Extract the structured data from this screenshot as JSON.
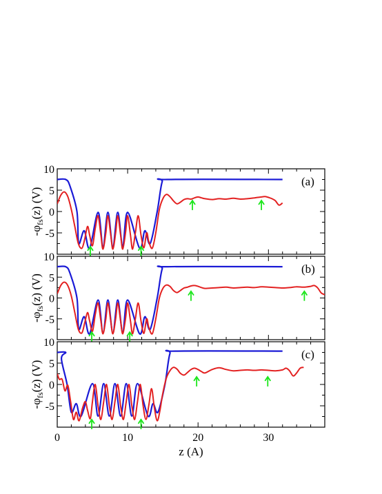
{
  "chart_data": [
    {
      "type": "line",
      "panel_label": "(a)",
      "ylabel_main": "-φ",
      "ylabel_sub": "fs",
      "ylabel_rest": "(z) (V)",
      "xlim": [
        0,
        38
      ],
      "ylim": [
        -10,
        10
      ],
      "yticks": [
        "10",
        "5",
        "0",
        "-5"
      ],
      "blue_series": {
        "color": "#1a1ad6",
        "start": 7.5,
        "end_x": 32,
        "plateau": 7.5,
        "wells": [
          [
            3.05,
            -7.5
          ],
          [
            4.6,
            -8.6
          ],
          [
            11.7,
            -8.6
          ],
          [
            13.2,
            -7.5
          ]
        ],
        "flanks": [
          [
            1.8,
            3.8
          ],
          [
            13.5,
            14.9
          ]
        ],
        "peaks": [
          5.8,
          7.2,
          8.6,
          10.0
        ],
        "peak_value": -0.2,
        "trough_value": -8.2
      },
      "red_series": {
        "color": "#e32020",
        "end_x": 32,
        "points": [
          [
            0,
            1.8
          ],
          [
            0.5,
            3.8
          ],
          [
            1.0,
            4.6
          ],
          [
            1.5,
            3.5
          ],
          [
            2.0,
            0.5
          ],
          [
            2.5,
            -3.5
          ],
          [
            3.0,
            -7.5
          ],
          [
            3.5,
            -8.6
          ],
          [
            3.9,
            -6.5
          ],
          [
            4.3,
            -3.5
          ],
          [
            4.6,
            -5.5
          ],
          [
            5.0,
            -8.0
          ],
          [
            5.4,
            -4.0
          ],
          [
            5.8,
            -1.0
          ],
          [
            6.2,
            -5.5
          ],
          [
            6.5,
            -8.8
          ],
          [
            6.9,
            -5.0
          ],
          [
            7.2,
            -1.0
          ],
          [
            7.6,
            -5.5
          ],
          [
            7.9,
            -8.8
          ],
          [
            8.3,
            -5.0
          ],
          [
            8.6,
            -1.0
          ],
          [
            9.0,
            -5.5
          ],
          [
            9.3,
            -8.8
          ],
          [
            9.7,
            -5.0
          ],
          [
            10.0,
            -1.0
          ],
          [
            10.4,
            -5.5
          ],
          [
            10.7,
            -8.8
          ],
          [
            11.1,
            -5.0
          ],
          [
            11.5,
            -1.0
          ],
          [
            11.9,
            -5.5
          ],
          [
            12.3,
            -8.5
          ],
          [
            12.7,
            -5.0
          ],
          [
            13.0,
            -7.0
          ],
          [
            13.5,
            -8.6
          ],
          [
            14.0,
            -5.0
          ],
          [
            14.5,
            0.5
          ],
          [
            15.0,
            3.0
          ],
          [
            15.5,
            4.0
          ],
          [
            16.0,
            3.5
          ],
          [
            16.5,
            2.5
          ],
          [
            17.0,
            1.8
          ],
          [
            17.5,
            2.2
          ],
          [
            18.0,
            2.8
          ],
          [
            18.5,
            3.0
          ],
          [
            19.0,
            2.9
          ],
          [
            19.5,
            3.2
          ],
          [
            20.0,
            3.4
          ],
          [
            20.5,
            3.2
          ],
          [
            21.0,
            3.0
          ],
          [
            22.0,
            2.8
          ],
          [
            23.0,
            3.0
          ],
          [
            24.0,
            2.9
          ],
          [
            25.0,
            3.1
          ],
          [
            26.0,
            2.9
          ],
          [
            27.0,
            3.0
          ],
          [
            28.0,
            3.2
          ],
          [
            29.0,
            3.4
          ],
          [
            29.5,
            3.5
          ],
          [
            30.0,
            3.3
          ],
          [
            30.5,
            3.0
          ],
          [
            31.0,
            2.5
          ],
          [
            31.5,
            1.5
          ],
          [
            32.0,
            2.0
          ]
        ]
      },
      "arrows": [
        {
          "x": 4.7,
          "y": -9.5,
          "dir": "up"
        },
        {
          "x": 11.9,
          "y": -9.5,
          "dir": "up"
        },
        {
          "x": 19.2,
          "y": 1.3,
          "dir": "up"
        },
        {
          "x": 29.0,
          "y": 1.3,
          "dir": "up"
        }
      ]
    },
    {
      "type": "line",
      "panel_label": "(b)",
      "ylabel_main": "-φ",
      "ylabel_sub": "fs",
      "ylabel_rest": "(z) (V)",
      "xlim": [
        0,
        38
      ],
      "ylim": [
        -10,
        10
      ],
      "yticks": [
        "10",
        "5",
        "0",
        "-5"
      ],
      "blue_series": {
        "color": "#1a1ad6",
        "start": 7.5,
        "end_x": 32,
        "plateau": 7.5,
        "wells": [
          [
            3.05,
            -7.5
          ],
          [
            4.6,
            -8.6
          ],
          [
            11.7,
            -8.6
          ],
          [
            13.2,
            -7.5
          ]
        ],
        "flanks": [
          [
            1.8,
            3.8
          ],
          [
            13.5,
            14.9
          ]
        ],
        "peaks": [
          5.8,
          7.2,
          8.6,
          10.0
        ],
        "peak_value": -0.5,
        "trough_value": -8.4
      },
      "red_series": {
        "color": "#e32020",
        "end_x": 38,
        "points": [
          [
            0,
            1.0
          ],
          [
            0.5,
            3.0
          ],
          [
            1.0,
            3.8
          ],
          [
            1.5,
            3.0
          ],
          [
            2.0,
            0.5
          ],
          [
            2.5,
            -3.5
          ],
          [
            3.0,
            -7.5
          ],
          [
            3.5,
            -8.4
          ],
          [
            3.9,
            -6.0
          ],
          [
            4.3,
            -3.5
          ],
          [
            4.6,
            -5.5
          ],
          [
            5.0,
            -8.0
          ],
          [
            5.4,
            -4.0
          ],
          [
            5.8,
            -1.2
          ],
          [
            6.2,
            -5.5
          ],
          [
            6.5,
            -8.6
          ],
          [
            6.9,
            -5.0
          ],
          [
            7.2,
            -1.2
          ],
          [
            7.6,
            -5.5
          ],
          [
            7.9,
            -8.6
          ],
          [
            8.3,
            -5.0
          ],
          [
            8.6,
            -1.2
          ],
          [
            9.0,
            -5.5
          ],
          [
            9.3,
            -8.6
          ],
          [
            9.7,
            -5.0
          ],
          [
            10.0,
            -1.2
          ],
          [
            10.4,
            -5.5
          ],
          [
            10.7,
            -8.6
          ],
          [
            11.1,
            -5.0
          ],
          [
            11.5,
            -1.2
          ],
          [
            11.9,
            -5.5
          ],
          [
            12.3,
            -8.5
          ],
          [
            12.7,
            -5.0
          ],
          [
            13.0,
            -7.0
          ],
          [
            13.5,
            -8.6
          ],
          [
            14.0,
            -5.0
          ],
          [
            14.5,
            0.0
          ],
          [
            15.0,
            2.3
          ],
          [
            15.5,
            3.1
          ],
          [
            16.0,
            2.8
          ],
          [
            16.5,
            1.8
          ],
          [
            17.0,
            1.3
          ],
          [
            17.5,
            1.8
          ],
          [
            18.0,
            2.4
          ],
          [
            18.5,
            2.6
          ],
          [
            19.0,
            2.9
          ],
          [
            19.5,
            3.0
          ],
          [
            20.0,
            2.8
          ],
          [
            20.5,
            2.5
          ],
          [
            21.0,
            2.3
          ],
          [
            22.0,
            2.4
          ],
          [
            23.0,
            2.5
          ],
          [
            24.0,
            2.6
          ],
          [
            25.0,
            2.4
          ],
          [
            26.0,
            2.5
          ],
          [
            27.0,
            2.6
          ],
          [
            28.0,
            2.5
          ],
          [
            29.0,
            2.7
          ],
          [
            30.0,
            2.6
          ],
          [
            31.0,
            2.5
          ],
          [
            32.0,
            2.4
          ],
          [
            33.0,
            2.5
          ],
          [
            34.0,
            2.7
          ],
          [
            35.0,
            2.6
          ],
          [
            36.0,
            2.8
          ],
          [
            36.5,
            3.0
          ],
          [
            37.0,
            2.4
          ],
          [
            37.5,
            1.2
          ],
          [
            38.0,
            0.8
          ]
        ]
      },
      "arrows": [
        {
          "x": 4.9,
          "y": -9.5,
          "dir": "up"
        },
        {
          "x": 10.3,
          "y": -9.5,
          "dir": "up"
        },
        {
          "x": 19.0,
          "y": 0.3,
          "dir": "up"
        },
        {
          "x": 35.1,
          "y": 0.3,
          "dir": "up"
        }
      ]
    },
    {
      "type": "line",
      "panel_label": "(c)",
      "ylabel_main": "-φ",
      "ylabel_sub": "fs",
      "ylabel_rest": "(z) (V)",
      "xlim": [
        0,
        38
      ],
      "ylim": [
        -10,
        10
      ],
      "yticks": [
        "10",
        "5",
        "0",
        "-5"
      ],
      "blue_series": {
        "color": "#1a1ad6",
        "start": 7.5,
        "end_x": 32,
        "plateau": 7.8,
        "wells": [
          [
            2.0,
            -6.5
          ],
          [
            3.4,
            -7.4
          ],
          [
            12.9,
            -7.4
          ],
          [
            14.3,
            -6.5
          ]
        ],
        "flanks": [
          [
            0.6,
            2.2
          ],
          [
            14.6,
            16.0
          ]
        ],
        "peaks": [
          5.0,
          6.6,
          8.2,
          9.8,
          11.4
        ],
        "peak_value": 0.2,
        "trough_value": -7.4
      },
      "red_series": {
        "color": "#e32020",
        "end_x": 35,
        "points": [
          [
            0,
            2.5
          ],
          [
            0.3,
            1.2
          ],
          [
            0.7,
            1.2
          ],
          [
            1.1,
            -1.5
          ],
          [
            1.5,
            -0.2
          ],
          [
            1.9,
            -4.0
          ],
          [
            2.3,
            -8.2
          ],
          [
            2.7,
            -6.5
          ],
          [
            3.1,
            -8.5
          ],
          [
            3.6,
            -5.5
          ],
          [
            4.0,
            -4.0
          ],
          [
            4.3,
            -6.0
          ],
          [
            4.7,
            -8.0
          ],
          [
            5.0,
            -4.0
          ],
          [
            5.4,
            0.0
          ],
          [
            5.8,
            -5.0
          ],
          [
            6.2,
            -8.2
          ],
          [
            6.6,
            -4.0
          ],
          [
            7.0,
            0.0
          ],
          [
            7.4,
            -5.0
          ],
          [
            7.8,
            -8.2
          ],
          [
            8.2,
            -4.0
          ],
          [
            8.6,
            0.0
          ],
          [
            9.0,
            -5.0
          ],
          [
            9.4,
            -8.2
          ],
          [
            9.8,
            -4.0
          ],
          [
            10.2,
            0.0
          ],
          [
            10.6,
            -5.0
          ],
          [
            11.0,
            -8.2
          ],
          [
            11.4,
            -4.0
          ],
          [
            11.8,
            0.0
          ],
          [
            12.2,
            -5.0
          ],
          [
            12.6,
            -8.2
          ],
          [
            13.0,
            -5.0
          ],
          [
            13.4,
            -1.0
          ],
          [
            13.8,
            -5.5
          ],
          [
            14.2,
            -8.5
          ],
          [
            14.6,
            -6.0
          ],
          [
            15.0,
            -2.0
          ],
          [
            15.5,
            1.5
          ],
          [
            16.0,
            3.2
          ],
          [
            16.5,
            4.0
          ],
          [
            17.0,
            3.6
          ],
          [
            17.5,
            2.6
          ],
          [
            18.0,
            2.2
          ],
          [
            18.5,
            2.8
          ],
          [
            19.0,
            3.5
          ],
          [
            19.5,
            3.8
          ],
          [
            20.0,
            3.5
          ],
          [
            20.5,
            3.0
          ],
          [
            21.0,
            2.7
          ],
          [
            22.0,
            3.5
          ],
          [
            23.0,
            3.9
          ],
          [
            24.0,
            3.5
          ],
          [
            25.0,
            3.2
          ],
          [
            26.0,
            3.3
          ],
          [
            27.0,
            3.4
          ],
          [
            28.0,
            3.3
          ],
          [
            29.0,
            3.4
          ],
          [
            30.0,
            3.3
          ],
          [
            31.0,
            3.2
          ],
          [
            32.0,
            3.4
          ],
          [
            32.5,
            3.8
          ],
          [
            33.0,
            3.2
          ],
          [
            33.5,
            2.0
          ],
          [
            34.0,
            2.7
          ],
          [
            34.5,
            3.8
          ],
          [
            35.0,
            4.0
          ]
        ]
      },
      "arrows": [
        {
          "x": 4.9,
          "y": -9.5,
          "dir": "up"
        },
        {
          "x": 11.9,
          "y": -9.5,
          "dir": "up"
        },
        {
          "x": 19.8,
          "y": 0.5,
          "dir": "up"
        },
        {
          "x": 29.9,
          "y": 0.5,
          "dir": "up"
        }
      ]
    }
  ],
  "x_axis": {
    "label": "z (A)",
    "ticks": [
      "0",
      "10",
      "20",
      "30"
    ],
    "tick_values": [
      0,
      10,
      20,
      30
    ]
  },
  "colors": {
    "blue": "#1a1ad6",
    "red": "#e32020",
    "arrow": "#19e619"
  }
}
